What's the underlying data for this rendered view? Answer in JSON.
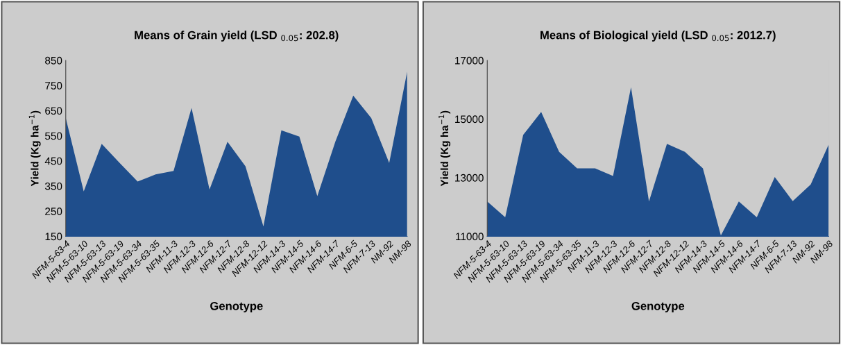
{
  "chart_data": [
    {
      "type": "area",
      "title": "Means of Grain yield (LSD $_{0.05}$: 202.8)",
      "xlabel": "Genotype",
      "ylabel": "Yield (Kg ha$^{−1}$)",
      "categories": [
        "NFM-5-63-4",
        "NFM-5-63-10",
        "NFM-5-63-13",
        "NFM-5-63-19",
        "NFM-5-63-34",
        "NFM-5-63-35",
        "NFM-11-3",
        "NFM-12-3",
        "NFM-12-6",
        "NFM-12-7",
        "NFM-12-8",
        "NFM-12-12",
        "NFM-14-3",
        "NFM-14-5",
        "NFM-14-6",
        "NFM-14-7",
        "NFM-6-5",
        "NFM-7-13",
        "NM-92",
        "NM-98"
      ],
      "values": [
        621,
        329,
        518,
        442,
        368,
        396,
        410,
        661,
        336,
        526,
        429,
        189,
        572,
        547,
        310,
        526,
        710,
        621,
        442,
        805
      ],
      "color": "#1f4e8c",
      "ylim": [
        150,
        850
      ],
      "yticks": [
        150,
        250,
        350,
        450,
        550,
        650,
        750,
        850
      ],
      "grid": false,
      "legend": false
    },
    {
      "type": "area",
      "title": "Means of Biological yield (LSD $_{0.05}$: 2012.7)",
      "xlabel": "Genotype",
      "ylabel": "Yield (Kg ha$^{−1}$)",
      "categories": [
        "NFM-5-63-4",
        "NFM-5-63-10",
        "NFM-5-63-13",
        "NFM-5-63-19",
        "NFM-5-63-34",
        "NFM-5-63-35",
        "NFM-11-3",
        "NFM-12-3",
        "NFM-12-6",
        "NFM-12-7",
        "NFM-12-8",
        "NFM-12-12",
        "NFM-14-3",
        "NFM-14-5",
        "NFM-14-6",
        "NFM-14-7",
        "NFM-6-5",
        "NFM-7-13",
        "NM-92",
        "NM-98"
      ],
      "values": [
        12190,
        11650,
        14460,
        15240,
        13880,
        13320,
        13320,
        13060,
        16080,
        12190,
        14150,
        13880,
        13320,
        11030,
        12190,
        11650,
        13020,
        12200,
        12770,
        14130
      ],
      "color": "#1f4e8c",
      "ylim": [
        11000,
        17000
      ],
      "yticks": [
        11000,
        13000,
        15000,
        17000
      ],
      "grid": false,
      "legend": false
    }
  ]
}
